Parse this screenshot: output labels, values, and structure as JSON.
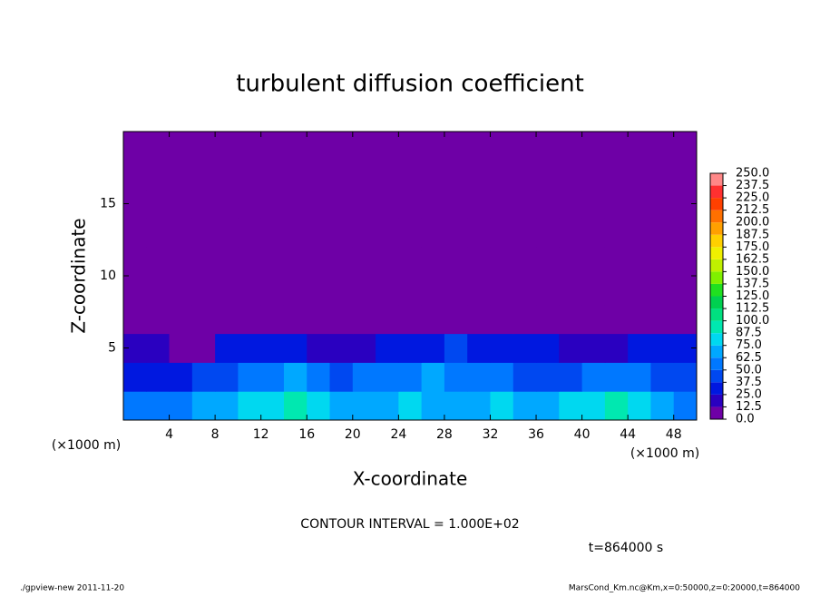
{
  "chart_data": {
    "type": "heatmap",
    "title": "turbulent diffusion coefficient",
    "x_label": "X-coordinate",
    "y_label": "Z-coordinate",
    "x_unit": "(×1000 m)",
    "x_unit_right": "(×1000 m)",
    "contour_note": "CONTOUR INTERVAL = 1.000E+02",
    "time_note": "t=864000 s",
    "footer_left": "./gpview-new   2011-11-20",
    "footer_right": "MarsCond_Km.nc@Km,x=0:50000,z=0:20000,t=864000",
    "xlim": [
      0,
      50
    ],
    "ylim": [
      0,
      20
    ],
    "xticks": [
      4,
      8,
      12,
      16,
      20,
      24,
      28,
      32,
      36,
      40,
      44,
      48
    ],
    "yticks": [
      5,
      10,
      15
    ],
    "xbins": [
      0,
      2,
      4,
      6,
      8,
      10,
      12,
      14,
      16,
      18,
      20,
      22,
      24,
      26,
      28,
      30,
      32,
      34,
      36,
      38,
      40,
      42,
      44,
      46,
      48,
      50
    ],
    "ybins": [
      0,
      2,
      4,
      6,
      8,
      10,
      12,
      14,
      16,
      18,
      20
    ],
    "z": [
      [
        55,
        60,
        60,
        65,
        70,
        75,
        85,
        90,
        80,
        70,
        65,
        70,
        75,
        70,
        65,
        70,
        75,
        70,
        70,
        75,
        80,
        90,
        85,
        70,
        60
      ],
      [
        35,
        30,
        35,
        40,
        45,
        55,
        60,
        65,
        50,
        45,
        50,
        55,
        60,
        65,
        55,
        50,
        55,
        45,
        40,
        45,
        50,
        55,
        50,
        45,
        40
      ],
      [
        20,
        15,
        10,
        10,
        25,
        30,
        30,
        35,
        15,
        15,
        20,
        25,
        30,
        35,
        40,
        30,
        35,
        30,
        30,
        20,
        15,
        15,
        25,
        30,
        25
      ],
      [
        10,
        0,
        0,
        0,
        0,
        0,
        0,
        0,
        0,
        0,
        0,
        0,
        0,
        0,
        0,
        5,
        10,
        0,
        0,
        0,
        0,
        0,
        0,
        0,
        0
      ],
      [
        0,
        0,
        0,
        0,
        0,
        0,
        0,
        0,
        0,
        0,
        0,
        0,
        0,
        0,
        0,
        0,
        0,
        0,
        0,
        0,
        0,
        0,
        0,
        0,
        0
      ],
      [
        0,
        0,
        0,
        0,
        0,
        0,
        0,
        0,
        0,
        0,
        0,
        0,
        0,
        0,
        0,
        0,
        0,
        0,
        0,
        0,
        0,
        0,
        0,
        0,
        0
      ],
      [
        0,
        0,
        0,
        0,
        0,
        0,
        0,
        0,
        0,
        0,
        0,
        0,
        0,
        0,
        0,
        0,
        0,
        0,
        0,
        0,
        0,
        0,
        0,
        0,
        0
      ],
      [
        0,
        0,
        0,
        0,
        0,
        0,
        0,
        0,
        0,
        0,
        0,
        0,
        0,
        0,
        0,
        0,
        0,
        0,
        0,
        0,
        0,
        0,
        0,
        0,
        0
      ],
      [
        0,
        0,
        0,
        0,
        0,
        0,
        0,
        0,
        0,
        0,
        0,
        0,
        0,
        0,
        0,
        0,
        0,
        0,
        0,
        0,
        0,
        0,
        0,
        0,
        0
      ],
      [
        0,
        0,
        0,
        0,
        0,
        0,
        0,
        0,
        0,
        0,
        0,
        0,
        0,
        0,
        0,
        0,
        0,
        0,
        0,
        0,
        0,
        0,
        0,
        0,
        0
      ]
    ],
    "levels": [
      {
        "value": 0,
        "label": "0.0"
      },
      {
        "value": 12.5,
        "label": "12.5"
      },
      {
        "value": 25,
        "label": "25.0"
      },
      {
        "value": 37.5,
        "label": "37.5"
      },
      {
        "value": 50,
        "label": "50.0"
      },
      {
        "value": 62.5,
        "label": "62.5"
      },
      {
        "value": 75,
        "label": "75.0"
      },
      {
        "value": 87.5,
        "label": "87.5"
      },
      {
        "value": 100,
        "label": "100.0"
      },
      {
        "value": 112.5,
        "label": "112.5"
      },
      {
        "value": 125,
        "label": "125.0"
      },
      {
        "value": 137.5,
        "label": "137.5"
      },
      {
        "value": 150,
        "label": "150.0"
      },
      {
        "value": 162.5,
        "label": "162.5"
      },
      {
        "value": 175,
        "label": "175.0"
      },
      {
        "value": 187.5,
        "label": "187.5"
      },
      {
        "value": 200,
        "label": "200.0"
      },
      {
        "value": 212.5,
        "label": "212.5"
      },
      {
        "value": 225,
        "label": "225.0"
      },
      {
        "value": 237.5,
        "label": "237.5"
      },
      {
        "value": 250,
        "label": "250.0"
      }
    ],
    "colors": [
      "#6e00a6",
      "#2a00c0",
      "#0018e0",
      "#0048f0",
      "#0078ff",
      "#00a8ff",
      "#00d8f0",
      "#00e8b0",
      "#00e080",
      "#00d050",
      "#20e020",
      "#80f000",
      "#c0f000",
      "#f0f000",
      "#ffd000",
      "#ffa000",
      "#ff7000",
      "#ff4000",
      "#ff3030",
      "#ff8888"
    ]
  }
}
